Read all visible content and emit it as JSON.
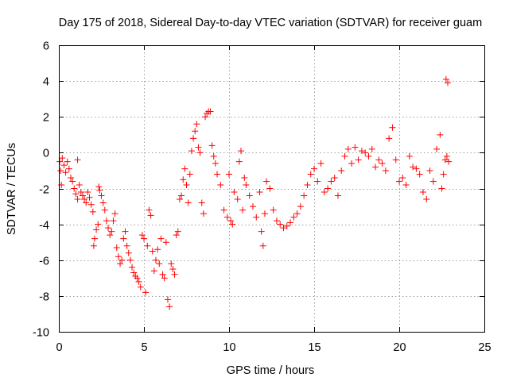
{
  "chart_data": {
    "type": "scatter",
    "title": "Day 175 of 2018, Sidereal Day-to-day VTEC variation (SDTVAR) for receiver guam",
    "xlabel": "GPS time / hours",
    "ylabel": "SDTVAR / TECUs",
    "xlim": [
      0,
      25
    ],
    "ylim": [
      -10,
      6
    ],
    "xticks": [
      "0",
      "5",
      "10",
      "15",
      "20",
      "25"
    ],
    "yticks": [
      "-10",
      "-8",
      "-6",
      "-4",
      "-2",
      "0",
      "2",
      "4",
      "6"
    ],
    "grid": true,
    "marker": "+",
    "series_color": "#ff0000",
    "series": [
      {
        "name": "SDTVAR",
        "points": [
          [
            0.05,
            -0.5
          ],
          [
            0.1,
            -1.0
          ],
          [
            0.15,
            -1.8
          ],
          [
            0.2,
            -0.3
          ],
          [
            0.3,
            -0.7
          ],
          [
            0.4,
            -1.1
          ],
          [
            0.5,
            -0.5
          ],
          [
            0.6,
            -0.9
          ],
          [
            0.7,
            -1.4
          ],
          [
            0.8,
            -1.6
          ],
          [
            0.9,
            -2.0
          ],
          [
            1.0,
            -2.3
          ],
          [
            1.1,
            -2.6
          ],
          [
            1.1,
            -0.4
          ],
          [
            1.2,
            -1.8
          ],
          [
            1.3,
            -2.2
          ],
          [
            1.4,
            -2.4
          ],
          [
            1.5,
            -2.6
          ],
          [
            1.6,
            -2.8
          ],
          [
            1.7,
            -2.2
          ],
          [
            1.8,
            -2.5
          ],
          [
            1.9,
            -2.9
          ],
          [
            2.0,
            -3.3
          ],
          [
            2.05,
            -5.2
          ],
          [
            2.1,
            -4.8
          ],
          [
            2.2,
            -4.3
          ],
          [
            2.3,
            -4.0
          ],
          [
            2.35,
            -1.9
          ],
          [
            2.4,
            -2.1
          ],
          [
            2.5,
            -2.4
          ],
          [
            2.6,
            -2.8
          ],
          [
            2.7,
            -3.2
          ],
          [
            2.8,
            -3.8
          ],
          [
            2.9,
            -4.2
          ],
          [
            3.0,
            -4.6
          ],
          [
            3.1,
            -4.4
          ],
          [
            3.2,
            -3.8
          ],
          [
            3.3,
            -3.4
          ],
          [
            3.4,
            -5.3
          ],
          [
            3.5,
            -5.8
          ],
          [
            3.6,
            -6.2
          ],
          [
            3.7,
            -6.0
          ],
          [
            3.8,
            -4.8
          ],
          [
            3.9,
            -4.4
          ],
          [
            4.0,
            -5.2
          ],
          [
            4.1,
            -5.6
          ],
          [
            4.2,
            -6.0
          ],
          [
            4.3,
            -6.4
          ],
          [
            4.4,
            -6.7
          ],
          [
            4.5,
            -6.9
          ],
          [
            4.6,
            -7.0
          ],
          [
            4.7,
            -7.2
          ],
          [
            4.8,
            -7.5
          ],
          [
            4.9,
            -4.6
          ],
          [
            5.0,
            -4.8
          ],
          [
            5.1,
            -7.8
          ],
          [
            5.2,
            -5.2
          ],
          [
            5.3,
            -3.2
          ],
          [
            5.4,
            -3.5
          ],
          [
            5.5,
            -5.5
          ],
          [
            5.6,
            -6.6
          ],
          [
            5.7,
            -6.0
          ],
          [
            5.8,
            -5.4
          ],
          [
            5.9,
            -6.2
          ],
          [
            6.0,
            -4.8
          ],
          [
            6.1,
            -6.8
          ],
          [
            6.2,
            -7.0
          ],
          [
            6.3,
            -5.0
          ],
          [
            6.4,
            -8.2
          ],
          [
            6.5,
            -8.6
          ],
          [
            6.6,
            -6.2
          ],
          [
            6.7,
            -6.5
          ],
          [
            6.8,
            -6.8
          ],
          [
            6.9,
            -4.6
          ],
          [
            7.0,
            -4.4
          ],
          [
            7.1,
            -2.6
          ],
          [
            7.2,
            -2.4
          ],
          [
            7.3,
            -1.5
          ],
          [
            7.4,
            -0.9
          ],
          [
            7.5,
            -1.8
          ],
          [
            7.6,
            -2.8
          ],
          [
            7.7,
            -1.2
          ],
          [
            7.8,
            0.1
          ],
          [
            7.9,
            0.8
          ],
          [
            8.0,
            1.2
          ],
          [
            8.1,
            1.6
          ],
          [
            8.2,
            0.3
          ],
          [
            8.3,
            0.0
          ],
          [
            8.4,
            -2.8
          ],
          [
            8.5,
            -3.4
          ],
          [
            8.6,
            2.0
          ],
          [
            8.7,
            2.2
          ],
          [
            8.8,
            2.3
          ],
          [
            8.9,
            2.3
          ],
          [
            9.0,
            0.4
          ],
          [
            9.1,
            -0.2
          ],
          [
            9.2,
            -0.6
          ],
          [
            9.3,
            -1.2
          ],
          [
            9.5,
            -1.8
          ],
          [
            9.7,
            -3.2
          ],
          [
            9.9,
            -3.6
          ],
          [
            10.0,
            -1.2
          ],
          [
            10.1,
            -3.8
          ],
          [
            10.2,
            -4.0
          ],
          [
            10.3,
            -2.2
          ],
          [
            10.5,
            -2.6
          ],
          [
            10.6,
            -0.5
          ],
          [
            10.7,
            0.1
          ],
          [
            10.8,
            -3.2
          ],
          [
            10.9,
            -1.4
          ],
          [
            11.0,
            -1.8
          ],
          [
            11.2,
            -2.4
          ],
          [
            11.4,
            -3.0
          ],
          [
            11.6,
            -3.6
          ],
          [
            11.8,
            -2.2
          ],
          [
            11.9,
            -4.4
          ],
          [
            12.0,
            -5.2
          ],
          [
            12.1,
            -3.4
          ],
          [
            12.2,
            -1.6
          ],
          [
            12.4,
            -2.0
          ],
          [
            12.6,
            -3.2
          ],
          [
            12.8,
            -3.8
          ],
          [
            13.0,
            -4.0
          ],
          [
            13.2,
            -4.2
          ],
          [
            13.4,
            -4.1
          ],
          [
            13.6,
            -3.9
          ],
          [
            13.8,
            -3.6
          ],
          [
            14.0,
            -3.4
          ],
          [
            14.2,
            -3.0
          ],
          [
            14.4,
            -2.4
          ],
          [
            14.6,
            -1.8
          ],
          [
            14.8,
            -1.2
          ],
          [
            15.0,
            -0.9
          ],
          [
            15.2,
            -1.6
          ],
          [
            15.4,
            -0.6
          ],
          [
            15.6,
            -2.2
          ],
          [
            15.8,
            -2.0
          ],
          [
            16.0,
            -1.6
          ],
          [
            16.2,
            -1.4
          ],
          [
            16.4,
            -2.4
          ],
          [
            16.6,
            -1.0
          ],
          [
            16.8,
            -0.2
          ],
          [
            17.0,
            0.2
          ],
          [
            17.2,
            -0.6
          ],
          [
            17.4,
            0.3
          ],
          [
            17.6,
            -0.4
          ],
          [
            17.8,
            0.1
          ],
          [
            18.0,
            0.0
          ],
          [
            18.2,
            -0.2
          ],
          [
            18.4,
            0.2
          ],
          [
            18.6,
            -0.8
          ],
          [
            18.8,
            -0.4
          ],
          [
            19.0,
            -0.6
          ],
          [
            19.2,
            -1.0
          ],
          [
            19.4,
            0.8
          ],
          [
            19.6,
            1.4
          ],
          [
            19.8,
            -0.4
          ],
          [
            20.0,
            -1.6
          ],
          [
            20.2,
            -1.4
          ],
          [
            20.4,
            -1.8
          ],
          [
            20.6,
            -0.2
          ],
          [
            20.8,
            -0.8
          ],
          [
            21.0,
            -0.9
          ],
          [
            21.2,
            -1.2
          ],
          [
            21.4,
            -2.2
          ],
          [
            21.6,
            -2.6
          ],
          [
            21.8,
            -1.0
          ],
          [
            22.0,
            -1.6
          ],
          [
            22.2,
            0.2
          ],
          [
            22.4,
            1.0
          ],
          [
            22.5,
            -2.0
          ],
          [
            22.6,
            -1.2
          ],
          [
            22.7,
            -0.4
          ],
          [
            22.8,
            -0.2
          ],
          [
            22.9,
            -0.5
          ],
          [
            22.75,
            4.1
          ],
          [
            22.85,
            3.9
          ]
        ]
      }
    ]
  }
}
